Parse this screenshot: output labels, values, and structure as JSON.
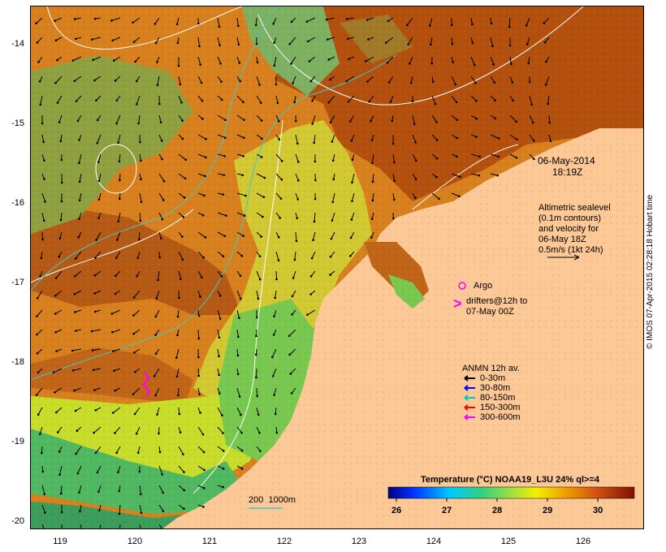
{
  "map": {
    "date": "06-May-2014",
    "time": "18:19Z",
    "y_ticks": [
      "-14",
      "-15",
      "-16",
      "-17",
      "-18",
      "-19",
      "-20"
    ],
    "x_ticks": [
      "119",
      "120",
      "121",
      "122",
      "123",
      "124",
      "125",
      "126"
    ],
    "sealevel_note": "Altimetric sealevel\n(0.1m contours)\nand velocity for\n06-May 18Z\n0.5m/s (1kt 24h)",
    "argo_label": "Argo",
    "drifter_label": "drifters@12h to\n07-May 00Z",
    "drifter_symbol": ">",
    "anmn_title": "ANMN 12h av.",
    "anmn_items": [
      {
        "label": "0-30m",
        "color": "#000000"
      },
      {
        "label": "30-80m",
        "color": "#0000ff"
      },
      {
        "label": "80-150m",
        "color": "#00c8c8"
      },
      {
        "label": "150-300m",
        "color": "#ff0000"
      },
      {
        "label": "300-600m",
        "color": "#ff00ff"
      }
    ],
    "isobath_label": "200  1000m",
    "colorbar_title": "Temperature (°C) NOAA19_L3U 24% ql>=4",
    "colorbar_ticks": [
      "26",
      "27",
      "28",
      "29",
      "30"
    ],
    "stamp": "© IMOS 07-Apr-2015 02:28:18 Hobart time",
    "colors": {
      "land": "#fcc896",
      "warm": "#b45a14",
      "mid": "#e08c28",
      "yellow": "#d2dc32",
      "green": "#78c850",
      "cyan_isobath": "#40c8c8"
    }
  }
}
